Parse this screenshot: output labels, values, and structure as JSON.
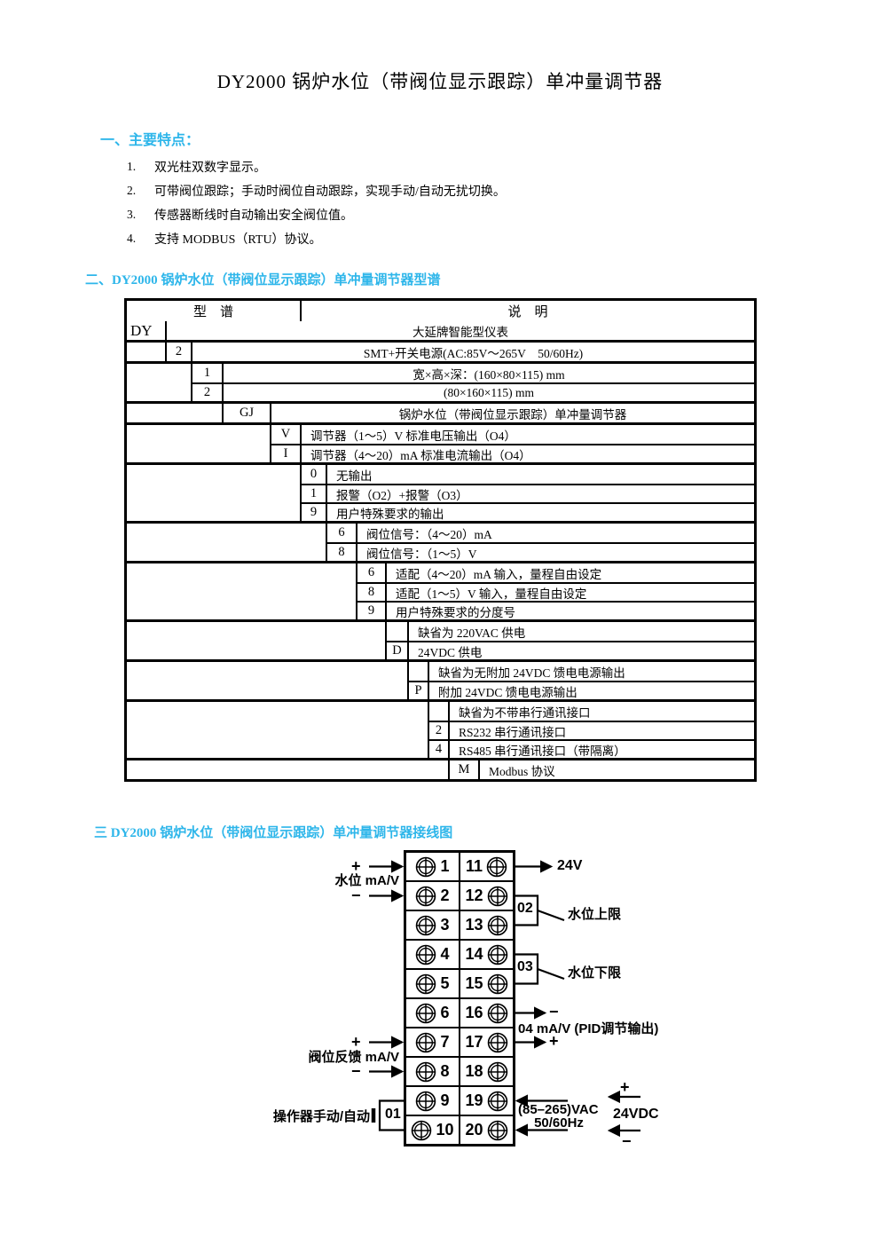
{
  "title": "DY2000 锅炉水位（带阀位显示跟踪）单冲量调节器",
  "accent_color": "#2eb6ea",
  "features": {
    "heading": "一、主要特点：",
    "items": [
      {
        "num": "1.",
        "text": "双光柱双数字显示。"
      },
      {
        "num": "2.",
        "text": "可带阀位跟踪；手动时阀位自动跟踪，实现手动/自动无扰切换。"
      },
      {
        "num": "3.",
        "text": "传感器断线时自动输出安全阀位值。"
      },
      {
        "num": "4.",
        "text": "支持 MODBUS（RTU）协议。"
      }
    ]
  },
  "spectrum": {
    "heading_prefix": "二、",
    "heading_model": "DY2000",
    "heading_rest": " 锅炉水位（带阀位显示跟踪）单冲量调节器型谱",
    "table": {
      "header_model": "型　谱",
      "header_desc": "说　明",
      "groups": [
        {
          "rows": [
            {
              "code": "DY",
              "desc": "大延牌智能型仪表"
            }
          ]
        },
        {
          "rows": [
            {
              "code": "2",
              "desc": "SMT+开关电源(AC:85V～265V　50/60Hz)"
            }
          ]
        },
        {
          "rows": [
            {
              "code": "1",
              "desc": "宽×高×深：(160×80×115) mm"
            },
            {
              "code": "2",
              "desc": "(80×160×115) mm"
            }
          ]
        },
        {
          "rows": [
            {
              "code": "GJ",
              "desc": "锅炉水位（带阀位显示跟踪）单冲量调节器"
            }
          ]
        },
        {
          "rows": [
            {
              "code": "V",
              "desc": "调节器（1～5）V 标准电压输出（O4）"
            },
            {
              "code": "I",
              "desc": "调节器（4～20）mA 标准电流输出（O4）"
            }
          ]
        },
        {
          "rows": [
            {
              "code": "0",
              "desc": "无输出"
            },
            {
              "code": "1",
              "desc": "报警（O2）+报警（O3）"
            },
            {
              "code": "9",
              "desc": "用户特殊要求的输出"
            }
          ]
        },
        {
          "rows": [
            {
              "code": "6",
              "desc": "阀位信号：（4～20）mA"
            },
            {
              "code": "8",
              "desc": "阀位信号：（1～5）V"
            }
          ]
        },
        {
          "rows": [
            {
              "code": "6",
              "desc": "适配（4～20）mA 输入，量程自由设定"
            },
            {
              "code": "8",
              "desc": "适配（1～5）V 输入，量程自由设定"
            },
            {
              "code": "9",
              "desc": "用户特殊要求的分度号"
            }
          ]
        },
        {
          "rows": [
            {
              "code": "",
              "desc": "缺省为 220VAC 供电"
            },
            {
              "code": "D",
              "desc": "24VDC 供电"
            }
          ]
        },
        {
          "rows": [
            {
              "code": "",
              "desc": "缺省为无附加 24VDC 馈电电源输出"
            },
            {
              "code": "P",
              "desc": "附加 24VDC 馈电电源输出"
            }
          ]
        },
        {
          "rows": [
            {
              "code": "",
              "desc": "缺省为不带串行通讯接口"
            },
            {
              "code": "2",
              "desc": "RS232 串行通讯接口"
            },
            {
              "code": "4",
              "desc": "RS485 串行通讯接口（带隔离）"
            }
          ]
        },
        {
          "rows": [
            {
              "code": "M",
              "desc": "Modbus 协议"
            }
          ]
        }
      ]
    }
  },
  "wiring": {
    "heading_prefix": "三 ",
    "heading_model": "DY2000",
    "heading_rest": " 锅炉水位（带阀位显示跟踪）单冲量调节器接线图",
    "terminals_left": [
      "1",
      "2",
      "3",
      "4",
      "5",
      "6",
      "7",
      "8",
      "9",
      "10"
    ],
    "terminals_right": [
      "11",
      "12",
      "13",
      "14",
      "15",
      "16",
      "17",
      "18",
      "19",
      "20"
    ],
    "plus": "+",
    "minus": "−",
    "water_level_label": "水位 mA/V",
    "valve_feedback_label": "阀位反馈 mA/V",
    "operator_label": "操作器手动/自动",
    "tag_01": "01",
    "tag_02": "02",
    "tag_03": "03",
    "out_24v": "24V",
    "upper_limit": "水位上限",
    "lower_limit": "水位下限",
    "pid_output": "04  mA/V (PID调节输出)",
    "vac": "(85–265)VAC",
    "freq": "50/60Hz",
    "vdc": "24VDC"
  }
}
